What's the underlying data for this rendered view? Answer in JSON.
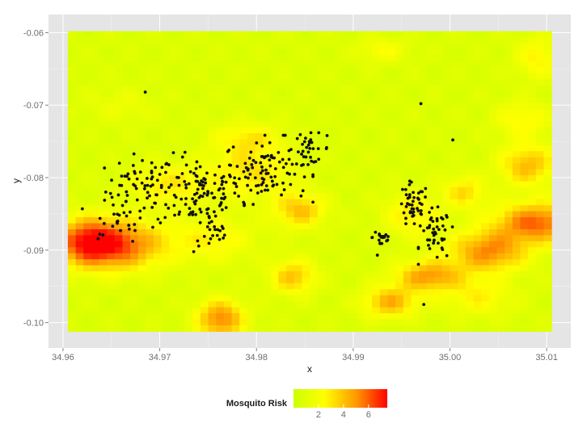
{
  "chart_data": {
    "type": "heatmap",
    "title": "",
    "xlabel": "x",
    "ylabel": "y",
    "xlim": [
      34.9585,
      35.0125
    ],
    "ylim": [
      -0.1035,
      -0.0575
    ],
    "x_ticks": [
      "34.96",
      "34.97",
      "34.98",
      "34.99",
      "35.00",
      "35.01"
    ],
    "x_tick_values": [
      34.96,
      34.97,
      34.98,
      34.99,
      35.0,
      35.01
    ],
    "y_ticks": [
      "-0.06",
      "-0.07",
      "-0.08",
      "-0.09",
      "-0.10"
    ],
    "y_tick_values": [
      -0.06,
      -0.07,
      -0.08,
      -0.09,
      -0.1
    ],
    "grid": true,
    "background": "#e5e5e5",
    "raster_extent": {
      "x": [
        34.9605,
        35.0105
      ],
      "y": [
        -0.1012,
        -0.0598
      ]
    },
    "fill": {
      "name": "Mosquito Risk",
      "range": [
        0,
        7.5
      ],
      "colors": [
        "#ccff00",
        "#ffff00",
        "#ff9900",
        "#ff0000"
      ],
      "legend_ticks": [
        "2",
        "4",
        "6"
      ],
      "legend_tick_values": [
        2,
        4,
        6
      ],
      "legend_position": "bottom"
    },
    "risk_hotspots": [
      {
        "x": 34.9655,
        "y": -0.0893,
        "value": 7.0,
        "sx": 0.0035,
        "sy": 0.0024
      },
      {
        "x": 34.9625,
        "y": -0.0888,
        "value": 5.5,
        "sx": 0.0022,
        "sy": 0.0022
      },
      {
        "x": 34.9763,
        "y": -0.0995,
        "value": 6.2,
        "sx": 0.0017,
        "sy": 0.0018
      },
      {
        "x": 34.9838,
        "y": -0.0937,
        "value": 4.5,
        "sx": 0.0017,
        "sy": 0.0017
      },
      {
        "x": 34.9845,
        "y": -0.0845,
        "value": 4.6,
        "sx": 0.0019,
        "sy": 0.0017
      },
      {
        "x": 34.9938,
        "y": -0.0972,
        "value": 5.0,
        "sx": 0.002,
        "sy": 0.0015
      },
      {
        "x": 34.9978,
        "y": -0.0936,
        "value": 5.6,
        "sx": 0.0024,
        "sy": 0.0015
      },
      {
        "x": 35.004,
        "y": -0.0902,
        "value": 6.0,
        "sx": 0.0028,
        "sy": 0.002
      },
      {
        "x": 35.009,
        "y": -0.0862,
        "value": 6.8,
        "sx": 0.003,
        "sy": 0.0019
      },
      {
        "x": 35.008,
        "y": -0.0783,
        "value": 4.8,
        "sx": 0.002,
        "sy": 0.002
      },
      {
        "x": 35.0015,
        "y": -0.082,
        "value": 3.8,
        "sx": 0.0015,
        "sy": 0.0016
      },
      {
        "x": 34.9755,
        "y": -0.0885,
        "value": 3.0,
        "sx": 0.003,
        "sy": 0.0022
      },
      {
        "x": 34.971,
        "y": -0.081,
        "value": 3.4,
        "sx": 0.003,
        "sy": 0.002
      },
      {
        "x": 34.9795,
        "y": -0.079,
        "value": 3.6,
        "sx": 0.003,
        "sy": 0.0026
      },
      {
        "x": 34.979,
        "y": -0.0745,
        "value": 3.0,
        "sx": 0.0025,
        "sy": 0.0015
      },
      {
        "x": 34.996,
        "y": -0.085,
        "value": 3.4,
        "sx": 0.002,
        "sy": 0.0022
      },
      {
        "x": 34.993,
        "y": -0.0625,
        "value": 2.6,
        "sx": 0.0018,
        "sy": 0.0012
      },
      {
        "x": 35.0075,
        "y": -0.072,
        "value": 3.0,
        "sx": 0.002,
        "sy": 0.0018
      },
      {
        "x": 35.009,
        "y": -0.0635,
        "value": 3.2,
        "sx": 0.0015,
        "sy": 0.002
      },
      {
        "x": 35.003,
        "y": -0.0965,
        "value": 3.0,
        "sx": 0.0025,
        "sy": 0.0018
      },
      {
        "x": 34.966,
        "y": -0.07,
        "value": 1.8,
        "sx": 0.0025,
        "sy": 0.0018
      }
    ],
    "point_clusters": [
      {
        "x": 34.968,
        "y": -0.0818,
        "count": 70,
        "sx": 0.0018,
        "sy": 0.0025
      },
      {
        "x": 34.974,
        "y": -0.082,
        "count": 110,
        "sx": 0.0022,
        "sy": 0.0025
      },
      {
        "x": 34.981,
        "y": -0.079,
        "count": 100,
        "sx": 0.0022,
        "sy": 0.0022
      },
      {
        "x": 34.9853,
        "y": -0.076,
        "count": 30,
        "sx": 0.0012,
        "sy": 0.001
      },
      {
        "x": 34.965,
        "y": -0.0868,
        "count": 14,
        "sx": 0.001,
        "sy": 0.0009
      },
      {
        "x": 34.9755,
        "y": -0.088,
        "count": 20,
        "sx": 0.001,
        "sy": 0.0012
      },
      {
        "x": 34.993,
        "y": -0.0882,
        "count": 18,
        "sx": 0.0005,
        "sy": 0.0008
      },
      {
        "x": 34.9962,
        "y": -0.084,
        "count": 45,
        "sx": 0.0008,
        "sy": 0.0016
      },
      {
        "x": 34.9985,
        "y": -0.088,
        "count": 45,
        "sx": 0.0008,
        "sy": 0.0018
      }
    ],
    "points": [
      {
        "x": 34.9685,
        "y": -0.0682
      },
      {
        "x": 34.962,
        "y": -0.0843
      },
      {
        "x": 34.997,
        "y": -0.0698
      },
      {
        "x": 34.9973,
        "y": -0.0975
      },
      {
        "x": 35.0003,
        "y": -0.0748
      },
      {
        "x": 34.9925,
        "y": -0.0907
      },
      {
        "x": 34.9638,
        "y": -0.0878
      },
      {
        "x": 34.9873,
        "y": -0.0742
      }
    ]
  }
}
